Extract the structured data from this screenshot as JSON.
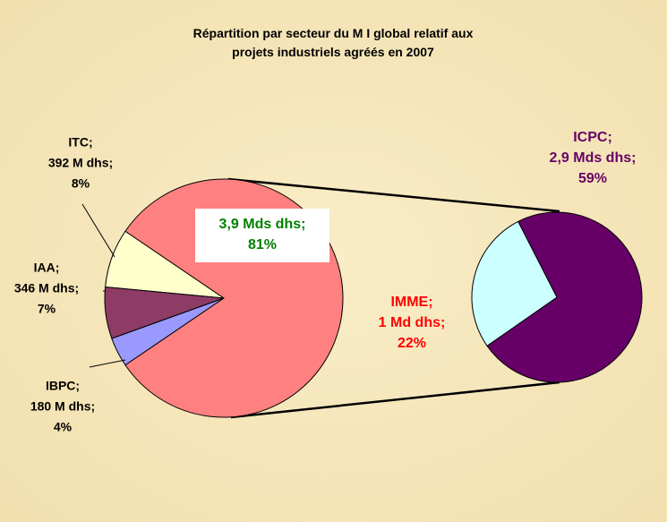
{
  "chart_data": {
    "type": "pie-of-pie",
    "title": "Répartition par secteur du M I global relatif aux projets industriels agréés en 2007",
    "primary": [
      {
        "name": "ITC;",
        "amount": "392 M dhs;",
        "value": 8,
        "value_label": "8%",
        "color": "#ffffcc"
      },
      {
        "name": "IAA;",
        "amount": "346 M dhs;",
        "value": 7,
        "value_label": "7%",
        "color": "#8e3b66"
      },
      {
        "name": "IBPC;",
        "amount": "180 M dhs;",
        "value": 4,
        "value_label": "4%",
        "color": "#9999ff"
      },
      {
        "name": null,
        "amount": "3,9 Mds dhs;",
        "value": 81,
        "value_label": "81%",
        "color": "#ff8080"
      }
    ],
    "secondary": [
      {
        "name": "ICPC;",
        "amount": "2,9 Mds dhs;",
        "value": 59,
        "value_label": "59%",
        "color": "#660066"
      },
      {
        "name": "IMME;",
        "amount": "1 Md dhs;",
        "value": 22,
        "value_label": "22%",
        "color": "#ccffff"
      }
    ]
  }
}
